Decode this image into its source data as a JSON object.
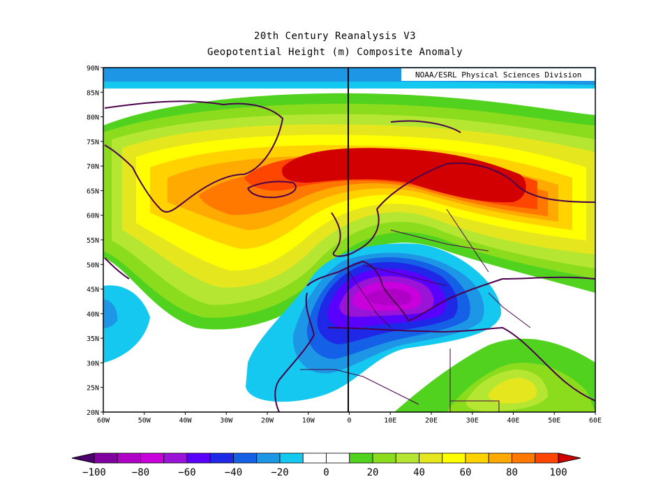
{
  "header": {
    "title": "20th Century Reanalysis V3",
    "subtitle": "Geopotential Height (m) Composite Anomaly"
  },
  "credit": "NOAA/ESRL Physical Sciences Division",
  "map": {
    "projection": "equirectangular",
    "lon_range": [
      -60,
      60
    ],
    "lat_range": [
      20,
      90
    ],
    "lat_ticks": [
      "90N",
      "85N",
      "80N",
      "75N",
      "70N",
      "65N",
      "60N",
      "55N",
      "50N",
      "45N",
      "40N",
      "35N",
      "30N",
      "25N",
      "20N"
    ],
    "lon_ticks": [
      "60W",
      "50W",
      "40W",
      "30W",
      "20W",
      "10W",
      "0",
      "10E",
      "20E",
      "30E",
      "40E",
      "50E",
      "60E"
    ],
    "anomaly_features": [
      {
        "name": "ridge-high-north-atlantic-scandinavia",
        "center_lon": 10,
        "center_lat": 68,
        "peak_value_m": 100
      },
      {
        "name": "trough-low-mediterranean",
        "center_lon": 12,
        "center_lat": 42,
        "peak_value_m": -90
      },
      {
        "name": "negative-anomaly-west-atlantic",
        "center_lon": -58,
        "center_lat": 40,
        "peak_value_m": -25
      },
      {
        "name": "negative-anomaly-polar",
        "center_lon": 0,
        "center_lat": 89,
        "peak_value_m": -25
      },
      {
        "name": "positive-anomaly-north-africa-arabia",
        "center_lon": 37,
        "center_lat": 28,
        "peak_value_m": 50
      }
    ]
  },
  "colorbar": {
    "labels": [
      "−100",
      "−80",
      "−60",
      "−40",
      "−20",
      "0",
      "20",
      "40",
      "60",
      "80",
      "100"
    ],
    "colors": [
      "#4b006e",
      "#8000a0",
      "#b000c8",
      "#c800dc",
      "#9a14d8",
      "#5a00ff",
      "#1e28e6",
      "#1460e6",
      "#1e96e6",
      "#14c8f0",
      "#ffffff",
      "#ffffff",
      "#50d21e",
      "#8cdc1e",
      "#b4e632",
      "#e6e61e",
      "#ffff00",
      "#ffd200",
      "#ffaa00",
      "#ff7800",
      "#ff4600",
      "#d20000"
    ]
  }
}
